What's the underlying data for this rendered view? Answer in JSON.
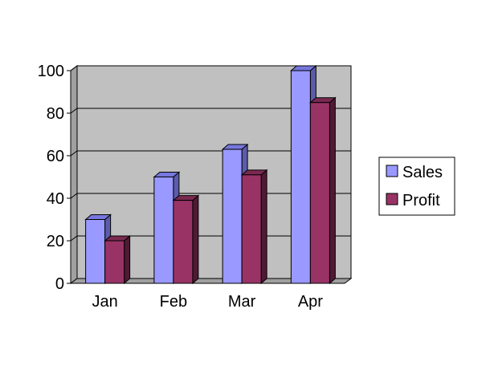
{
  "chart_data": {
    "type": "bar",
    "style": "3d-clustered-column",
    "title": "",
    "xlabel": "",
    "ylabel": "",
    "categories": [
      "Jan",
      "Feb",
      "Mar",
      "Apr"
    ],
    "series": [
      {
        "name": "Sales",
        "values": [
          30,
          50,
          63,
          100
        ],
        "color": "#9999FF",
        "top_color": "#7777DD",
        "side_color": "#5C5CAA"
      },
      {
        "name": "Profit",
        "values": [
          20,
          39,
          51,
          85
        ],
        "color": "#993366",
        "top_color": "#7A2950",
        "side_color": "#4F1A33"
      }
    ],
    "ylim": [
      0,
      100
    ],
    "y_ticks": [
      "0",
      "20",
      "40",
      "60",
      "80",
      "100"
    ],
    "grid": true,
    "plot_background": "#C0C0C0",
    "legend_position": "right"
  }
}
